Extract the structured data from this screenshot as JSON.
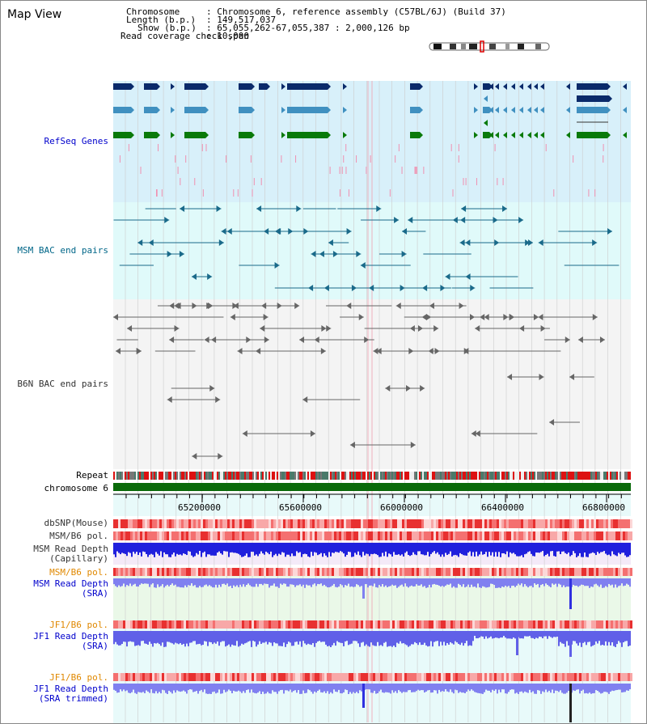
{
  "app": {
    "title": "Map View"
  },
  "info": {
    "chromosome_key": "Chromosome",
    "chromosome_val": ": Chromosome 6, reference assembly (C57BL/6J) (Build 37)",
    "length_key": "Length (b.p.)",
    "length_val": ": 149,517,037",
    "show_key": "Show (b.p.)",
    "show_val": ": 65,055,262-67,055,387 : 2,000,126 bp",
    "coverage_key": "Read coverage check span",
    "coverage_val": ": 10,000"
  },
  "tracks": {
    "refseq": "RefSeq Genes",
    "msm_bac": "MSM BAC end pairs",
    "b6n_bac": "B6N BAC end pairs",
    "repeat": "Repeat",
    "chrom": "chromosome 6"
  },
  "axis": {
    "ticks": [
      "65200000",
      "65600000",
      "66000000",
      "66400000",
      "66800000"
    ]
  },
  "lower": {
    "dbsnp": "dbSNP(Mouse)",
    "msmb6_pol_1": "MSM/B6 pol.",
    "msm_cap_1": "MSM Read Depth",
    "msm_cap_2": "(Capillary)",
    "msmb6_pol_2": "MSM/B6 pol.",
    "msm_sra_1": "MSM Read Depth",
    "msm_sra_2": "(SRA)",
    "jf1_pol_1": "JF1/B6 pol.",
    "jf1_sra_1": "JF1 Read Depth",
    "jf1_sra_2": "(SRA)",
    "jf1_pol_2": "JF1/B6 pol.",
    "jf1_trim_1": "JF1 Read Depth",
    "jf1_trim_2": "(SRA trimmed)"
  },
  "colors": {
    "refseq_bg": "#d8f0fa",
    "msm_bg": "#e0fafa",
    "b6n_bg": "#f4f4f4",
    "navy": "#0a2a6a",
    "steel": "#4090c0",
    "green": "#0a7a0a",
    "msm_line": "#1a6a8a",
    "b6n_line": "#666666",
    "label_blue": "#0000cc",
    "label_teal": "#006688",
    "label_orange": "#e08800"
  }
}
